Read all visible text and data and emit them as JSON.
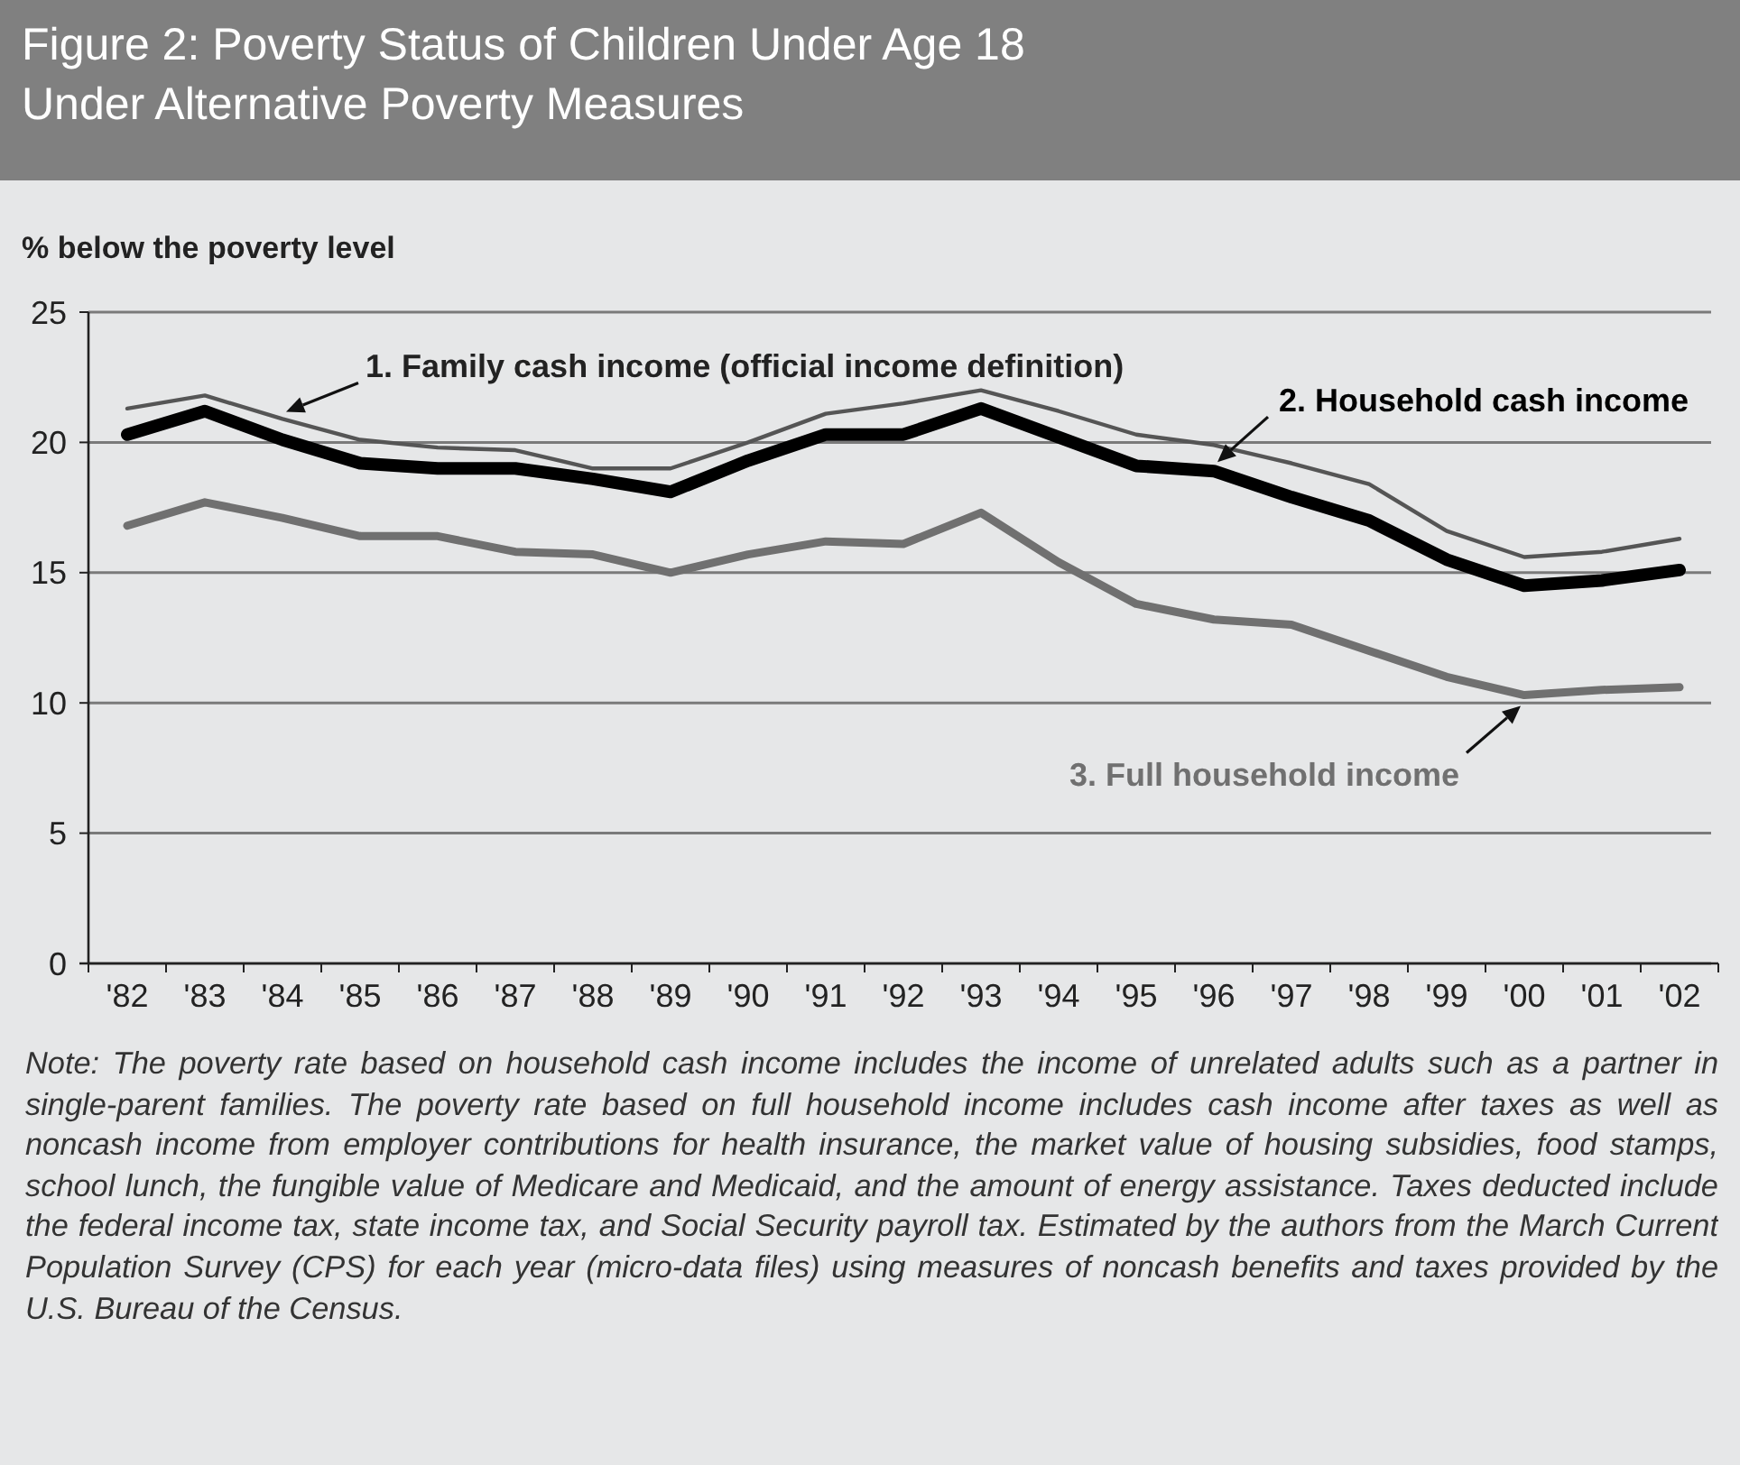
{
  "chart_data": {
    "type": "line",
    "title": "Figure 2: Poverty Status of Children Under Age 18 Under Alternative Poverty Measures",
    "ylabel": "% below the poverty level",
    "categories": [
      "'82",
      "'83",
      "'84",
      "'85",
      "'86",
      "'87",
      "'88",
      "'89",
      "'90",
      "'91",
      "'92",
      "'93",
      "'94",
      "'95",
      "'96",
      "'97",
      "'98",
      "'99",
      "'00",
      "'01",
      "'02"
    ],
    "series": [
      {
        "name": "1. Family cash income (official income definition)",
        "color": "#555555",
        "values": [
          21.3,
          21.8,
          20.9,
          20.1,
          19.8,
          19.7,
          19.0,
          19.0,
          20.0,
          21.1,
          21.5,
          22.0,
          21.2,
          20.3,
          19.9,
          19.2,
          18.4,
          16.6,
          15.6,
          15.8,
          16.3
        ]
      },
      {
        "name": "2. Household cash income",
        "color": "#000000",
        "values": [
          20.3,
          21.2,
          20.1,
          19.2,
          19.0,
          19.0,
          18.6,
          18.1,
          19.3,
          20.3,
          20.3,
          21.3,
          20.2,
          19.1,
          18.9,
          17.9,
          17.0,
          15.5,
          14.5,
          14.7,
          15.1
        ]
      },
      {
        "name": "3. Full household income",
        "color": "#707070",
        "values": [
          16.8,
          17.7,
          17.1,
          16.4,
          16.4,
          15.8,
          15.7,
          15.0,
          15.7,
          16.2,
          16.1,
          17.3,
          15.4,
          13.8,
          13.2,
          13.0,
          12.0,
          11.0,
          10.3,
          10.5,
          10.6
        ]
      }
    ],
    "ylim": [
      0,
      25
    ],
    "yticks": [
      0,
      5,
      10,
      15,
      20,
      25
    ],
    "grid": "y",
    "legend": false,
    "marker": "none",
    "line_style": "solid",
    "annotations": [
      "Note: The poverty rate based on household cash income includes the income of unrelated adults such as a partner in single-parent families. The poverty rate based on full household income includes cash income after taxes as well as noncash income from employer contributions for health insurance, the market value of housing subsidies, food stamps, school lunch, the fungible value of Medicare and Medicaid, and the amount of energy assistance. Taxes deducted include the federal income tax, state income tax, and Social Security payroll tax. Estimated by the authors from the March Current Population Survey (CPS) for each year (micro-data files) using measures of noncash benefits and taxes provided by the U.S. Bureau of the Census."
    ]
  }
}
